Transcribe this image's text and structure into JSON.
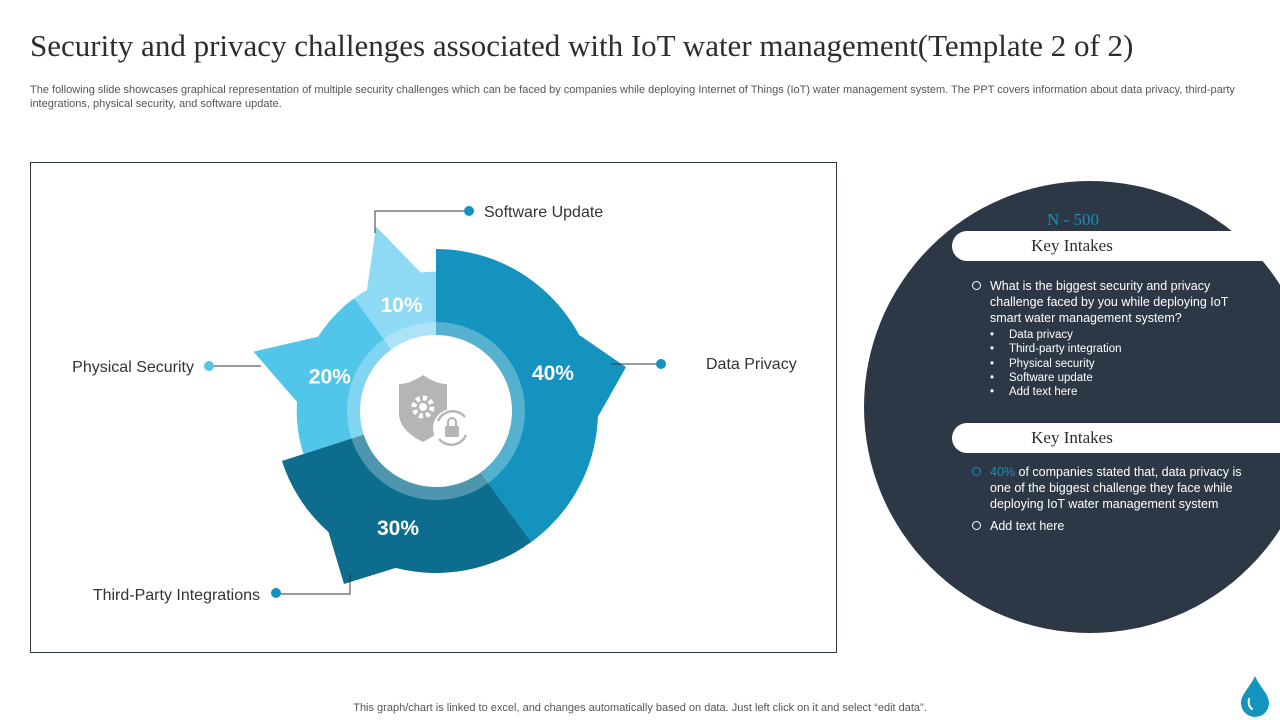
{
  "slide": {
    "title": "Security and privacy challenges associated with IoT water management(Template 2 of 2)",
    "subtitle": "The following slide showcases graphical representation of multiple security challenges which can be faced by companies while deploying Internet of Things (IoT) water management system. The PPT covers information about data privacy,  third-party integrations, physical security, and software update.",
    "footer": "This graph/chart is linked to excel,  and changes automatically based on data. Just left click on it and select “edit data”."
  },
  "chart_data": {
    "type": "pie",
    "variant": "donut",
    "categories": [
      "Data Privacy",
      "Third-Party Integrations",
      "Physical Security",
      "Software Update"
    ],
    "values": [
      40,
      30,
      20,
      10
    ],
    "value_labels": [
      "40%",
      "30%",
      "20%",
      "10%"
    ],
    "colors": [
      "#1393bd",
      "#0c6d8f",
      "#52c5ea",
      "#8ed9f3"
    ],
    "center_icon": "shield-gear-lock-icon"
  },
  "panel": {
    "n_label": "N - 500",
    "heading_1": "Key Intakes",
    "question": "What is the biggest security and privacy challenge faced by you while deploying IoT smart water management system?",
    "options": [
      "Data privacy",
      "Third-party integration",
      "Physical security",
      "Software update",
      "Add text here"
    ],
    "heading_2": "Key Intakes",
    "stat_value": "40%",
    "stat_text": " of companies stated that, data privacy is one of the biggest challenge they face while deploying IoT water management system",
    "extra": "Add text here"
  },
  "colors": {
    "dark": "#2d3846",
    "accent": "#1790b9"
  },
  "logo_icon": "water-drop-icon"
}
